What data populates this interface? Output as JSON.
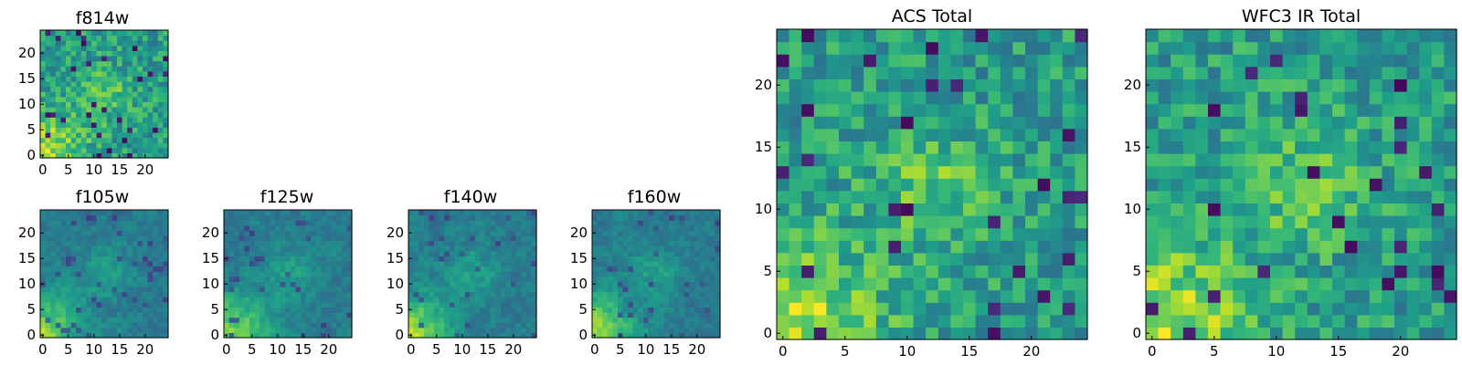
{
  "figure_title": "",
  "chart_data": [
    {
      "type": "heatmap",
      "title": "f814w",
      "grid": [
        25,
        25
      ],
      "colormap": "viridis",
      "xticks": [
        "0",
        "5",
        "10",
        "15",
        "20"
      ],
      "yticks": [
        "0",
        "5",
        "10",
        "15",
        "20"
      ],
      "xlim": [
        0,
        25
      ],
      "ylim": [
        0,
        25
      ]
    },
    {
      "type": "heatmap",
      "title": "f105w",
      "grid": [
        25,
        25
      ],
      "colormap": "viridis",
      "xticks": [
        "0",
        "5",
        "10",
        "15",
        "20"
      ],
      "yticks": [
        "0",
        "5",
        "10",
        "15",
        "20"
      ],
      "xlim": [
        0,
        25
      ],
      "ylim": [
        0,
        25
      ]
    },
    {
      "type": "heatmap",
      "title": "f125w",
      "grid": [
        25,
        25
      ],
      "colormap": "viridis",
      "xticks": [
        "0",
        "5",
        "10",
        "15",
        "20"
      ],
      "yticks": [
        "0",
        "5",
        "10",
        "15",
        "20"
      ],
      "xlim": [
        0,
        25
      ],
      "ylim": [
        0,
        25
      ]
    },
    {
      "type": "heatmap",
      "title": "f140w",
      "grid": [
        25,
        25
      ],
      "colormap": "viridis",
      "xticks": [
        "0",
        "5",
        "10",
        "15",
        "20"
      ],
      "yticks": [
        "0",
        "5",
        "10",
        "15",
        "20"
      ],
      "xlim": [
        0,
        25
      ],
      "ylim": [
        0,
        25
      ]
    },
    {
      "type": "heatmap",
      "title": "f160w",
      "grid": [
        25,
        25
      ],
      "colormap": "viridis",
      "xticks": [
        "0",
        "5",
        "10",
        "15",
        "20"
      ],
      "yticks": [
        "0",
        "5",
        "10",
        "15",
        "20"
      ],
      "xlim": [
        0,
        25
      ],
      "ylim": [
        0,
        25
      ]
    },
    {
      "type": "heatmap",
      "title": "ACS Total",
      "grid": [
        25,
        25
      ],
      "colormap": "viridis",
      "xticks": [
        "0",
        "5",
        "10",
        "15",
        "20"
      ],
      "yticks": [
        "0",
        "5",
        "10",
        "15",
        "20"
      ],
      "xlim": [
        0,
        25
      ],
      "ylim": [
        0,
        25
      ]
    },
    {
      "type": "heatmap",
      "title": "WFC3 IR Total",
      "grid": [
        25,
        25
      ],
      "colormap": "viridis",
      "xticks": [
        "0",
        "5",
        "10",
        "15",
        "20"
      ],
      "yticks": [
        "0",
        "5",
        "10",
        "15",
        "20"
      ],
      "xlim": [
        0,
        25
      ],
      "ylim": [
        0,
        25
      ]
    }
  ]
}
